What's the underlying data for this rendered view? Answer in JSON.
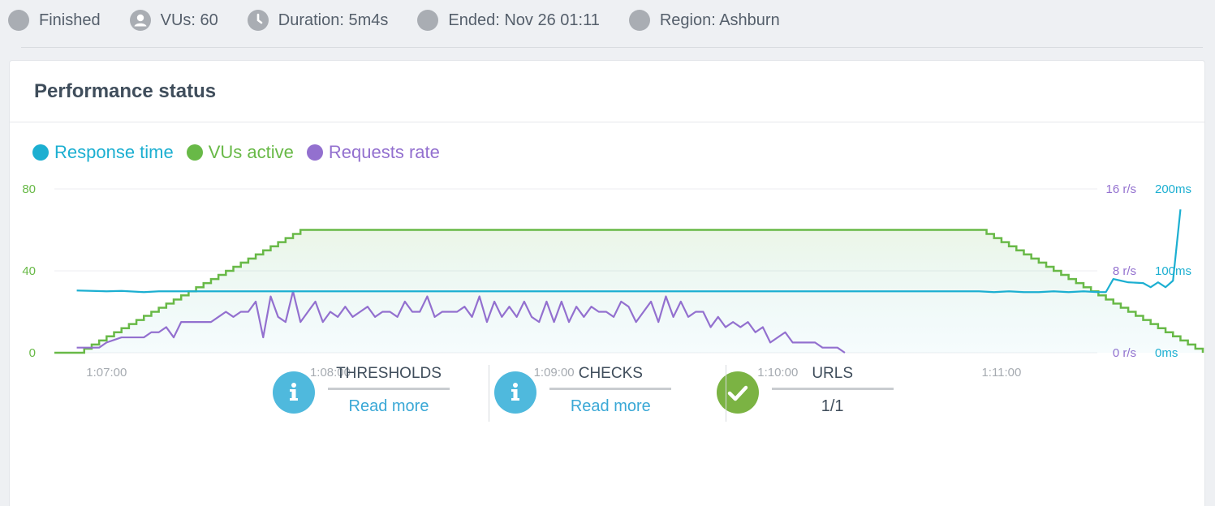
{
  "topbar": {
    "items": [
      {
        "icon": "status-dot-icon",
        "label": "Finished"
      },
      {
        "icon": "user-icon",
        "label": "VUs: 60"
      },
      {
        "icon": "clock-icon",
        "label": "Duration: 5m4s"
      },
      {
        "icon": "calendar-dot-icon",
        "label": "Ended: Nov 26 01:11"
      },
      {
        "icon": "globe-dot-icon",
        "label": "Region: Ashburn"
      }
    ]
  },
  "card": {
    "title": "Performance status"
  },
  "colors": {
    "response_time": "#1cafd1",
    "vus_active": "#68b947",
    "requests_rate": "#9370cf",
    "info": "#4fb9dd",
    "ok": "#7bb343"
  },
  "chart_data": {
    "type": "line",
    "legend": [
      "Response time",
      "VUs active",
      "Requests rate"
    ],
    "x_ticks": [
      "1:07:00",
      "1:08:00",
      "1:09:00",
      "1:10:00",
      "1:11:00"
    ],
    "x_range_seconds": [
      4006,
      4314
    ],
    "left_axis": {
      "ticks": [
        "0",
        "40",
        "80"
      ],
      "range": [
        0,
        80
      ]
    },
    "right_axis_rate": {
      "ticks": [
        "0 r/s",
        "8 r/s",
        "16 r/s"
      ],
      "range": [
        0,
        16
      ]
    },
    "right_axis_time": {
      "ticks": [
        "0ms",
        "100ms",
        "200ms"
      ],
      "range": [
        0,
        200
      ]
    },
    "series": [
      {
        "name": "VUs active",
        "axis": "left",
        "points": [
          [
            4006,
            0
          ],
          [
            4012,
            0
          ],
          [
            4014,
            2
          ],
          [
            4016,
            4
          ],
          [
            4018,
            6
          ],
          [
            4020,
            8
          ],
          [
            4022,
            10
          ],
          [
            4024,
            12
          ],
          [
            4026,
            14
          ],
          [
            4028,
            16
          ],
          [
            4030,
            18
          ],
          [
            4032,
            20
          ],
          [
            4034,
            22
          ],
          [
            4036,
            24
          ],
          [
            4038,
            26
          ],
          [
            4040,
            28
          ],
          [
            4042,
            30
          ],
          [
            4044,
            32
          ],
          [
            4046,
            34
          ],
          [
            4048,
            36
          ],
          [
            4050,
            38
          ],
          [
            4052,
            40
          ],
          [
            4054,
            42
          ],
          [
            4056,
            44
          ],
          [
            4058,
            46
          ],
          [
            4060,
            48
          ],
          [
            4062,
            50
          ],
          [
            4064,
            52
          ],
          [
            4066,
            54
          ],
          [
            4068,
            56
          ],
          [
            4070,
            58
          ],
          [
            4072,
            60
          ],
          [
            4254,
            60
          ],
          [
            4256,
            58
          ],
          [
            4258,
            56
          ],
          [
            4260,
            54
          ],
          [
            4262,
            52
          ],
          [
            4264,
            50
          ],
          [
            4266,
            48
          ],
          [
            4268,
            46
          ],
          [
            4270,
            44
          ],
          [
            4272,
            42
          ],
          [
            4274,
            40
          ],
          [
            4276,
            38
          ],
          [
            4278,
            36
          ],
          [
            4280,
            34
          ],
          [
            4282,
            32
          ],
          [
            4284,
            30
          ],
          [
            4286,
            28
          ],
          [
            4288,
            26
          ],
          [
            4290,
            24
          ],
          [
            4292,
            22
          ],
          [
            4294,
            20
          ],
          [
            4296,
            18
          ],
          [
            4298,
            16
          ],
          [
            4300,
            14
          ],
          [
            4302,
            12
          ],
          [
            4304,
            10
          ],
          [
            4306,
            8
          ],
          [
            4308,
            6
          ],
          [
            4310,
            4
          ],
          [
            4312,
            2
          ]
        ]
      },
      {
        "name": "Requests rate",
        "axis": "right_rate",
        "points": [
          [
            4012,
            0.5
          ],
          [
            4018,
            0.5
          ],
          [
            4020,
            1
          ],
          [
            4024,
            1.5
          ],
          [
            4030,
            1.5
          ],
          [
            4032,
            2
          ],
          [
            4034,
            2
          ],
          [
            4036,
            2.5
          ],
          [
            4038,
            1.5
          ],
          [
            4040,
            3
          ],
          [
            4048,
            3
          ],
          [
            4050,
            3.5
          ],
          [
            4052,
            4
          ],
          [
            4054,
            3.5
          ],
          [
            4056,
            4
          ],
          [
            4058,
            4
          ],
          [
            4060,
            5
          ],
          [
            4062,
            1.5
          ],
          [
            4064,
            5.5
          ],
          [
            4066,
            3.5
          ],
          [
            4068,
            3
          ],
          [
            4070,
            6
          ],
          [
            4072,
            3
          ],
          [
            4074,
            4
          ],
          [
            4076,
            5
          ],
          [
            4078,
            3
          ],
          [
            4080,
            4
          ],
          [
            4082,
            3.5
          ],
          [
            4084,
            4.5
          ],
          [
            4086,
            3.5
          ],
          [
            4088,
            4
          ],
          [
            4090,
            4.5
          ],
          [
            4092,
            3.5
          ],
          [
            4094,
            4
          ],
          [
            4096,
            4
          ],
          [
            4098,
            3.5
          ],
          [
            4100,
            5
          ],
          [
            4102,
            4
          ],
          [
            4104,
            4
          ],
          [
            4106,
            5.5
          ],
          [
            4108,
            3.5
          ],
          [
            4110,
            4
          ],
          [
            4112,
            4
          ],
          [
            4114,
            4
          ],
          [
            4116,
            4.5
          ],
          [
            4118,
            3.5
          ],
          [
            4120,
            5.5
          ],
          [
            4122,
            3
          ],
          [
            4124,
            5
          ],
          [
            4126,
            3.5
          ],
          [
            4128,
            4.5
          ],
          [
            4130,
            3.5
          ],
          [
            4132,
            5
          ],
          [
            4134,
            3.5
          ],
          [
            4136,
            3
          ],
          [
            4138,
            5
          ],
          [
            4140,
            3
          ],
          [
            4142,
            5
          ],
          [
            4144,
            3
          ],
          [
            4146,
            4.5
          ],
          [
            4148,
            3.5
          ],
          [
            4150,
            4.5
          ],
          [
            4152,
            4
          ],
          [
            4154,
            4
          ],
          [
            4156,
            3.5
          ],
          [
            4158,
            5
          ],
          [
            4160,
            4.5
          ],
          [
            4162,
            3
          ],
          [
            4164,
            4
          ],
          [
            4166,
            5
          ],
          [
            4168,
            3
          ],
          [
            4170,
            5.5
          ],
          [
            4172,
            3.5
          ],
          [
            4174,
            5
          ],
          [
            4176,
            3.5
          ],
          [
            4178,
            4
          ],
          [
            4180,
            4
          ],
          [
            4182,
            2.5
          ],
          [
            4184,
            3.5
          ],
          [
            4186,
            2.5
          ],
          [
            4188,
            3
          ],
          [
            4190,
            2.5
          ],
          [
            4192,
            3
          ],
          [
            4194,
            2
          ],
          [
            4196,
            2.5
          ],
          [
            4198,
            1
          ],
          [
            4202,
            2
          ],
          [
            4204,
            1
          ],
          [
            4210,
            1
          ],
          [
            4212,
            0.5
          ],
          [
            4216,
            0.5
          ],
          [
            4218,
            0
          ]
        ]
      },
      {
        "name": "Response time",
        "axis": "right_time",
        "points": [
          [
            4012,
            76
          ],
          [
            4020,
            75
          ],
          [
            4024,
            75.5
          ],
          [
            4030,
            74
          ],
          [
            4034,
            75
          ],
          [
            4040,
            75
          ],
          [
            4050,
            75
          ],
          [
            4254,
            75
          ],
          [
            4258,
            74
          ],
          [
            4262,
            75
          ],
          [
            4266,
            74
          ],
          [
            4270,
            74
          ],
          [
            4274,
            75
          ],
          [
            4278,
            74
          ],
          [
            4282,
            75
          ],
          [
            4286,
            74
          ],
          [
            4288,
            74
          ],
          [
            4290,
            90
          ],
          [
            4292,
            88
          ],
          [
            4294,
            86
          ],
          [
            4298,
            85
          ],
          [
            4300,
            80
          ],
          [
            4302,
            86
          ],
          [
            4304,
            80
          ],
          [
            4306,
            88
          ]
        ]
      }
    ]
  },
  "summary": {
    "thresholds": {
      "label": "THRESHOLDS",
      "value": "Read more"
    },
    "checks": {
      "label": "CHECKS",
      "value": "Read more"
    },
    "urls": {
      "label": "URLS",
      "value": "1/1"
    }
  }
}
